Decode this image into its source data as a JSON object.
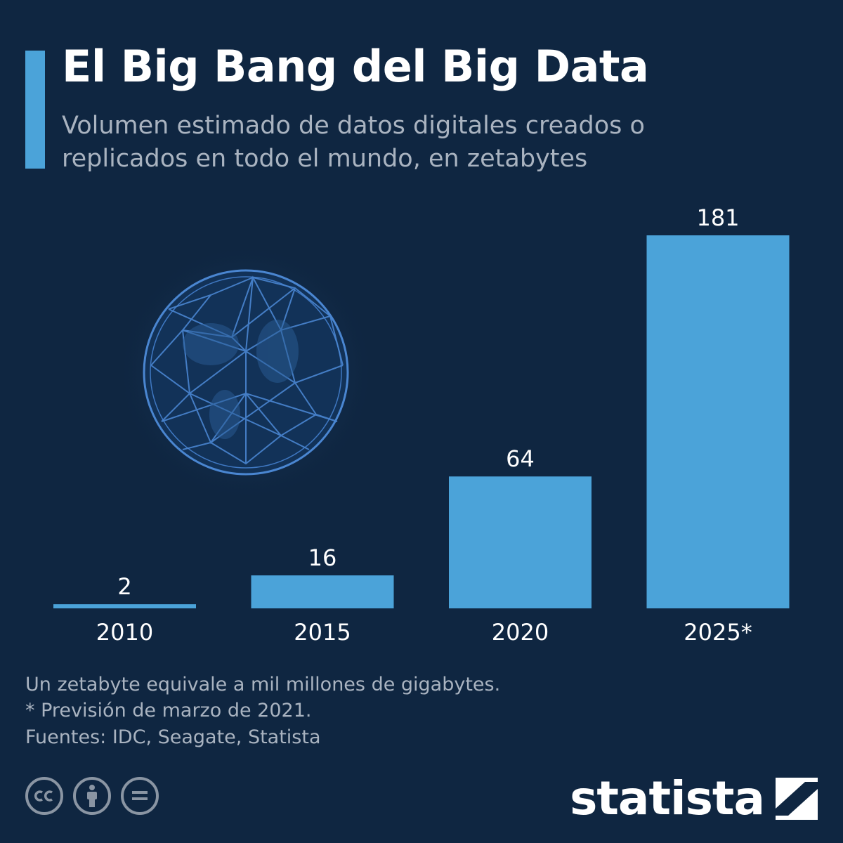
{
  "header": {
    "title": "El Big Bang del Big Data",
    "subtitle": "Volumen estimado de datos digitales creados o replicados en todo el mundo, en zetabytes"
  },
  "chart_data": {
    "type": "bar",
    "categories": [
      "2010",
      "2015",
      "2020",
      "2025*"
    ],
    "values": [
      2,
      16,
      64,
      181
    ],
    "data_labels": [
      "2",
      "16",
      "64",
      "181"
    ],
    "ylim": [
      0,
      181
    ],
    "grid": false,
    "legend": "none",
    "bar_color": "#4ba3d9"
  },
  "footer": {
    "note1": "Un zetabyte equivale a mil millones de gigabytes.",
    "note2": "* Previsión de marzo de 2021.",
    "sources": "Fuentes: IDC, Seagate, Statista",
    "license_icons": [
      "cc-icon",
      "attribution-icon",
      "no-derivatives-icon"
    ],
    "brand": "statista"
  },
  "colors": {
    "background": "#0f2641",
    "accent": "#4ba3d9",
    "muted_text": "#a9b3c0"
  }
}
